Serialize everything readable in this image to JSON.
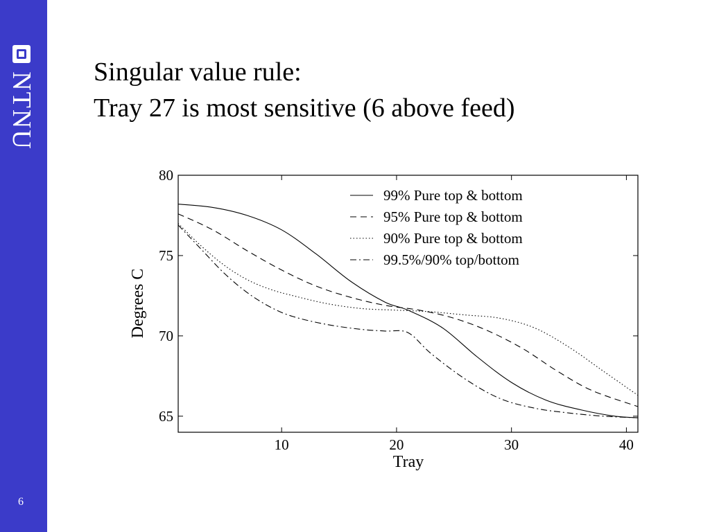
{
  "brand": {
    "logo_text": "NTNU",
    "sidebar_color": "#3b3bc9"
  },
  "slide": {
    "number": "6",
    "title_line1": "Singular value rule:",
    "title_line2": "Tray 27 is most sensitive (6 above feed)"
  },
  "chart_data": {
    "type": "line",
    "xlabel": "Tray",
    "ylabel": "Degrees C",
    "xlim": [
      1,
      41
    ],
    "ylim": [
      64,
      80
    ],
    "xticks": [
      10,
      20,
      30,
      40
    ],
    "yticks": [
      65,
      70,
      75,
      80
    ],
    "legend_position": "top-right",
    "grid": false,
    "series": [
      {
        "name": "99% Pure top & bottom",
        "style": "solid",
        "x": [
          1,
          4,
          7,
          10,
          13,
          16,
          19,
          21,
          24,
          27,
          30,
          33,
          36,
          39,
          41
        ],
        "y": [
          78.2,
          78.0,
          77.5,
          76.6,
          75.1,
          73.4,
          72.1,
          71.6,
          70.5,
          68.7,
          67.1,
          66.0,
          65.4,
          65.0,
          64.9
        ]
      },
      {
        "name": "95% Pure top & bottom",
        "style": "dashed",
        "x": [
          1,
          4,
          7,
          10,
          13,
          16,
          19,
          22,
          25,
          28,
          31,
          34,
          37,
          41
        ],
        "y": [
          77.6,
          76.6,
          75.3,
          74.1,
          73.1,
          72.4,
          71.9,
          71.6,
          71.1,
          70.3,
          69.2,
          67.8,
          66.6,
          65.6
        ]
      },
      {
        "name": "90% Pure top & bottom",
        "style": "dotted",
        "x": [
          1,
          3,
          5,
          7,
          9,
          11,
          14,
          17,
          20,
          23,
          26,
          29,
          32,
          35,
          38,
          41
        ],
        "y": [
          77.0,
          75.6,
          74.4,
          73.5,
          72.9,
          72.5,
          72.0,
          71.7,
          71.6,
          71.5,
          71.3,
          71.1,
          70.5,
          69.3,
          67.8,
          66.3
        ]
      },
      {
        "name": "99.5%/90% top/bottom",
        "style": "dashdot",
        "x": [
          1,
          3,
          5,
          7,
          9,
          11,
          14,
          17,
          19,
          21,
          23,
          26,
          29,
          32,
          35,
          38,
          41
        ],
        "y": [
          76.9,
          75.4,
          73.9,
          72.7,
          71.8,
          71.2,
          70.7,
          70.4,
          70.3,
          70.2,
          68.9,
          67.3,
          66.1,
          65.5,
          65.2,
          65.0,
          64.9
        ]
      }
    ]
  }
}
